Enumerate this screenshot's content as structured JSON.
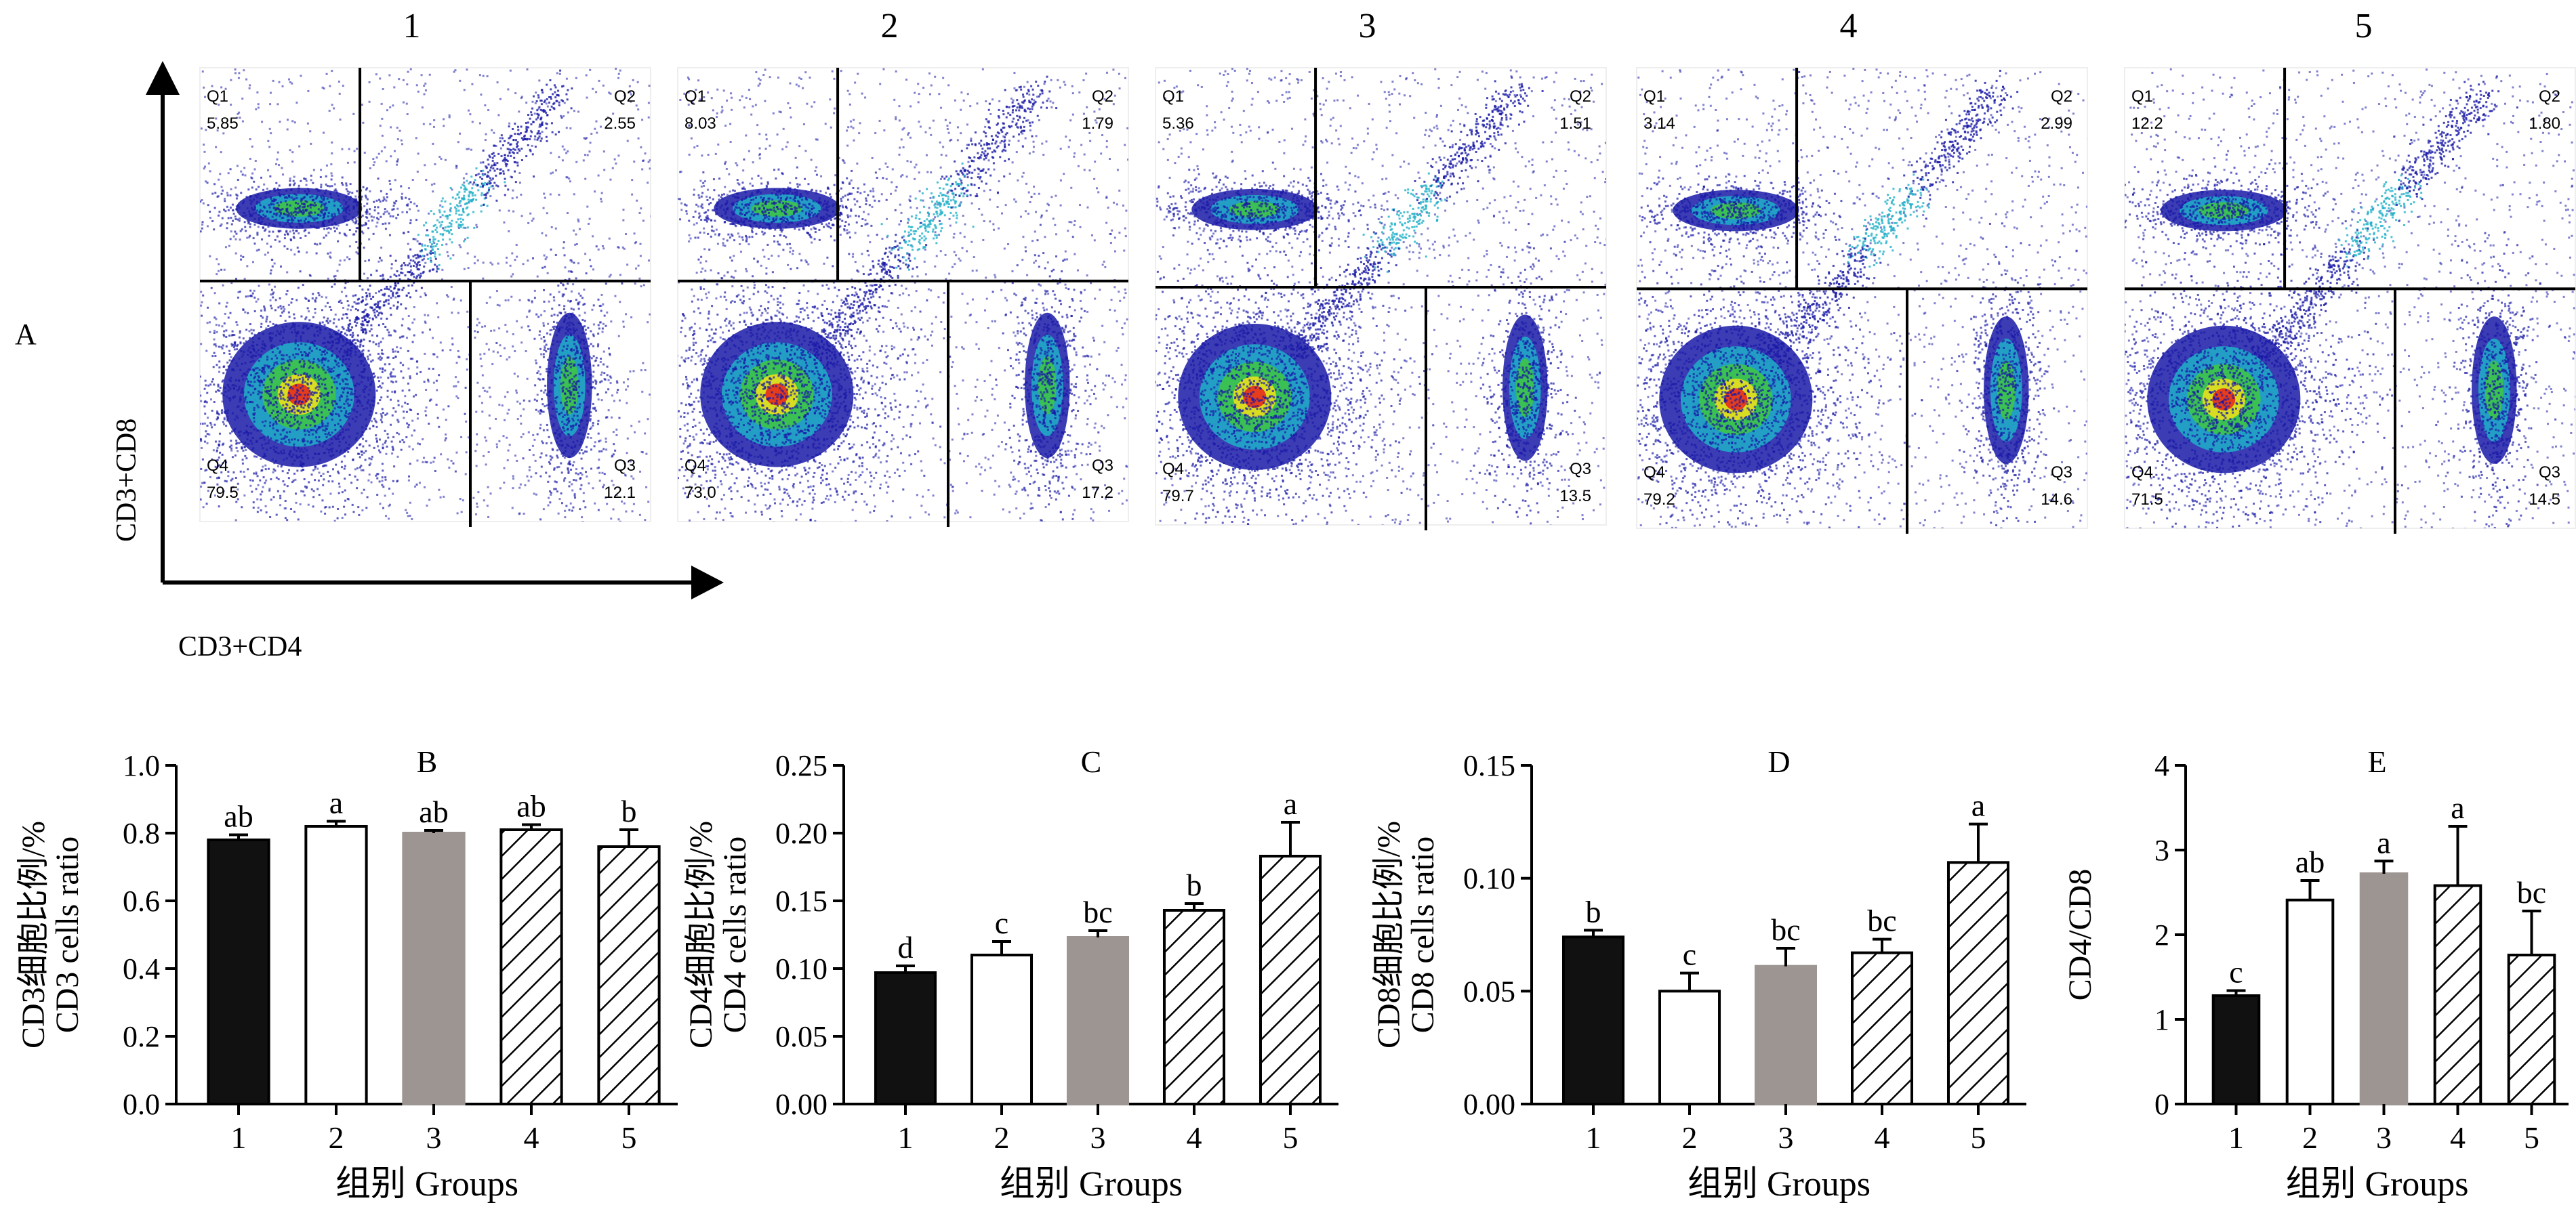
{
  "panel_a": {
    "label": "A",
    "xlabel": "CD3+CD4",
    "ylabel": "CD3+CD8",
    "plots": [
      {
        "title": "1",
        "q1_label": "Q1",
        "q1": "5.85",
        "q2_label": "Q2",
        "q2": "2.55",
        "q3_label": "Q3",
        "q3": "12.1",
        "q4_label": "Q4",
        "q4": "79.5"
      },
      {
        "title": "2",
        "q1_label": "Q1",
        "q1": "8.03",
        "q2_label": "Q2",
        "q2": "1.79",
        "q3_label": "Q3",
        "q3": "17.2",
        "q4_label": "Q4",
        "q4": "73.0"
      },
      {
        "title": "3",
        "q1_label": "Q1",
        "q1": "5.36",
        "q2_label": "Q2",
        "q2": "1.51",
        "q3_label": "Q3",
        "q3": "13.5",
        "q4_label": "Q4",
        "q4": "79.7"
      },
      {
        "title": "4",
        "q1_label": "Q1",
        "q1": "3.14",
        "q2_label": "Q2",
        "q2": "2.99",
        "q3_label": "Q3",
        "q3": "14.6",
        "q4_label": "Q4",
        "q4": "79.2"
      },
      {
        "title": "5",
        "q1_label": "Q1",
        "q1": "12.2",
        "q2_label": "Q2",
        "q2": "1.80",
        "q3_label": "Q3",
        "q3": "14.5",
        "q4_label": "Q4",
        "q4": "71.5"
      }
    ]
  },
  "chart_data": [
    {
      "type": "bar",
      "title": "B",
      "xlabel": "组别 Groups",
      "ylabel_line1": "CD3细胞比例/%",
      "ylabel_line2": "CD3 cells ratio",
      "categories": [
        "1",
        "2",
        "3",
        "4",
        "5"
      ],
      "values": [
        0.78,
        0.82,
        0.8,
        0.81,
        0.76
      ],
      "errors": [
        0.015,
        0.015,
        0.008,
        0.015,
        0.05
      ],
      "letters": [
        "ab",
        "a",
        "ab",
        "ab",
        "b"
      ],
      "ylim": [
        0,
        1.0
      ],
      "yticks": [
        "0.0",
        "0.2",
        "0.4",
        "0.6",
        "0.8",
        "1.0"
      ],
      "fills": [
        "black",
        "white",
        "gray",
        "hatch",
        "hatch"
      ]
    },
    {
      "type": "bar",
      "title": "C",
      "xlabel": "组别 Groups",
      "ylabel_line1": "CD4细胞比例/%",
      "ylabel_line2": "CD4 cells ratio",
      "categories": [
        "1",
        "2",
        "3",
        "4",
        "5"
      ],
      "values": [
        0.097,
        0.11,
        0.123,
        0.143,
        0.183
      ],
      "errors": [
        0.005,
        0.01,
        0.005,
        0.005,
        0.025
      ],
      "letters": [
        "d",
        "c",
        "bc",
        "b",
        "a"
      ],
      "ylim": [
        0,
        0.25
      ],
      "yticks": [
        "0.00",
        "0.05",
        "0.10",
        "0.15",
        "0.20",
        "0.25"
      ],
      "fills": [
        "black",
        "white",
        "gray",
        "hatch",
        "hatch"
      ]
    },
    {
      "type": "bar",
      "title": "D",
      "xlabel": "组别 Groups",
      "ylabel_line1": "CD8细胞比例/%",
      "ylabel_line2": "CD8 cells ratio",
      "categories": [
        "1",
        "2",
        "3",
        "4",
        "5"
      ],
      "values": [
        0.074,
        0.05,
        0.061,
        0.067,
        0.107
      ],
      "errors": [
        0.003,
        0.008,
        0.008,
        0.006,
        0.017
      ],
      "letters": [
        "b",
        "c",
        "bc",
        "bc",
        "a"
      ],
      "ylim": [
        0,
        0.15
      ],
      "yticks": [
        "0.00",
        "0.05",
        "0.10",
        "0.15"
      ],
      "fills": [
        "black",
        "white",
        "gray",
        "hatch",
        "hatch"
      ]
    },
    {
      "type": "bar",
      "title": "E",
      "xlabel": "组别 Groups",
      "ylabel_line1": "CD4/CD8",
      "ylabel_line2": "",
      "categories": [
        "1",
        "2",
        "3",
        "4",
        "5"
      ],
      "values": [
        1.28,
        2.41,
        2.72,
        2.58,
        1.76
      ],
      "errors": [
        0.06,
        0.23,
        0.15,
        0.7,
        0.52
      ],
      "letters": [
        "c",
        "ab",
        "a",
        "a",
        "bc"
      ],
      "ylim": [
        0,
        4
      ],
      "yticks": [
        "0",
        "1",
        "2",
        "3",
        "4"
      ],
      "fills": [
        "black",
        "white",
        "gray",
        "hatch",
        "hatch"
      ]
    }
  ],
  "colors": {
    "bar_black": "#111111",
    "bar_gray": "#9c9592",
    "density_low": "#1a1aa8",
    "density_mid": "#1fb0c8",
    "density_high": "#3ec63e",
    "density_peak": "#f4e21a",
    "density_max": "#e8201a"
  }
}
